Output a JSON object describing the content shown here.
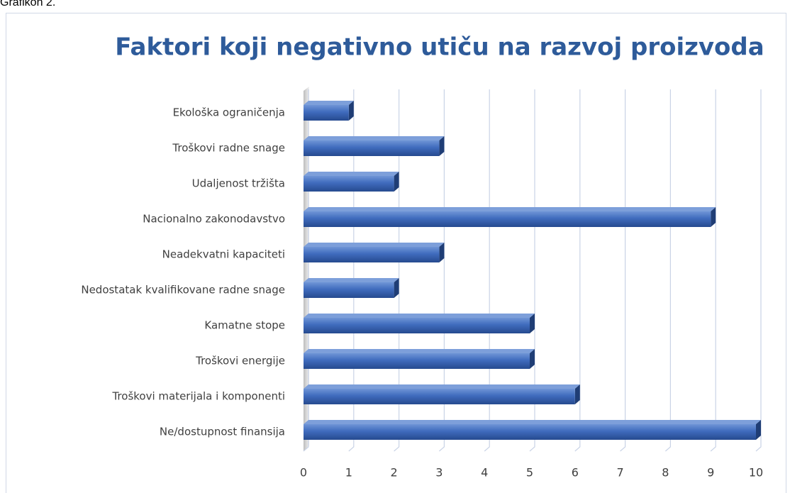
{
  "caption": "Grafikon 2.",
  "chart_data": {
    "type": "bar",
    "orientation": "horizontal",
    "title": "Faktori koji negativno utiču na razvoj proizvoda",
    "categories": [
      "Ekološka ograničenja",
      "Troškovi radne snage",
      "Udaljenost tržišta",
      "Nacionalno zakonodavstvo",
      "Neadekvatni kapaciteti",
      "Nedostatak kvalifikovane radne snage",
      "Kamatne stope",
      "Troškovi energije",
      "Troškovi materijala i komponenti",
      "Ne/dostupnost finansija"
    ],
    "values": [
      1,
      3,
      2,
      9,
      3,
      2,
      5,
      5,
      6,
      10
    ],
    "color": "#4472c4",
    "xlim": [
      0,
      10
    ],
    "xticks": [
      0,
      1,
      2,
      3,
      4,
      5,
      6,
      7,
      8,
      9,
      10
    ],
    "grid": true
  }
}
